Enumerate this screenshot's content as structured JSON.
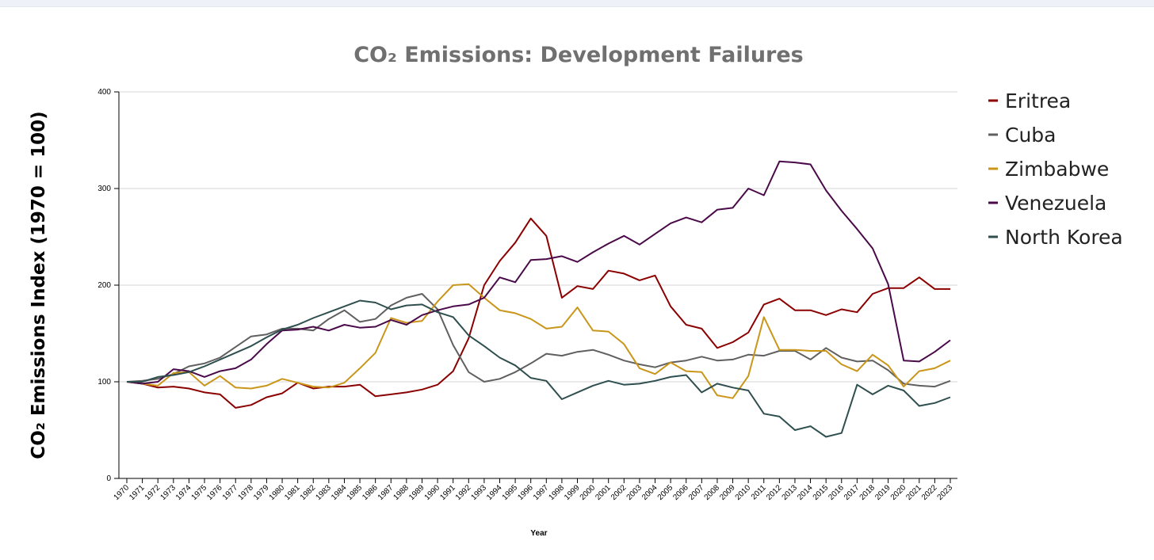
{
  "chart_data": {
    "type": "line",
    "title": "CO₂ Emissions: Development Failures",
    "xlabel": "Year",
    "ylabel": "CO₂ Emissions Index (1970 = 100)",
    "ylim": [
      0,
      400
    ],
    "yticks": [
      "0",
      "100",
      "200",
      "300",
      "400"
    ],
    "grid": true,
    "legend_position": "right",
    "x": [
      1970,
      1971,
      1972,
      1973,
      1974,
      1975,
      1976,
      1977,
      1978,
      1979,
      1980,
      1981,
      1982,
      1983,
      1984,
      1985,
      1986,
      1987,
      1988,
      1989,
      1990,
      1991,
      1992,
      1993,
      1994,
      1995,
      1996,
      1997,
      1998,
      1999,
      2000,
      2001,
      2002,
      2003,
      2004,
      2005,
      2006,
      2007,
      2008,
      2009,
      2010,
      2011,
      2012,
      2013,
      2014,
      2015,
      2016,
      2017,
      2018,
      2019,
      2020,
      2021,
      2022,
      2023
    ],
    "series": [
      {
        "name": "Eritrea",
        "color": "#8b0000",
        "values": [
          100,
          98,
          94,
          95,
          93,
          89,
          87,
          73,
          76,
          84,
          88,
          99,
          93,
          95,
          95,
          97,
          85,
          87,
          89,
          92,
          97,
          111,
          145,
          200,
          225,
          244,
          269,
          251,
          187,
          199,
          196,
          215,
          212,
          205,
          210,
          178,
          159,
          155,
          135,
          141,
          151,
          180,
          186,
          174,
          174,
          169,
          175,
          172,
          191,
          197,
          197,
          208,
          196,
          196
        ]
      },
      {
        "name": "Cuba",
        "color": "#606060",
        "values": [
          100,
          101,
          103,
          108,
          116,
          119,
          125,
          136,
          147,
          149,
          155,
          155,
          153,
          165,
          174,
          162,
          165,
          179,
          187,
          191,
          175,
          138,
          110,
          100,
          103,
          110,
          119,
          129,
          127,
          131,
          133,
          128,
          122,
          118,
          115,
          120,
          122,
          126,
          122,
          123,
          128,
          127,
          132,
          132,
          123,
          135,
          125,
          121,
          122,
          112,
          98,
          96,
          95,
          101
        ]
      },
      {
        "name": "Zimbabwe",
        "color": "#c9961a",
        "values": [
          100,
          98,
          96,
          109,
          110,
          96,
          106,
          94,
          93,
          96,
          103,
          99,
          95,
          94,
          99,
          114,
          130,
          166,
          161,
          163,
          183,
          200,
          201,
          187,
          174,
          171,
          165,
          155,
          157,
          177,
          153,
          152,
          139,
          114,
          108,
          120,
          111,
          110,
          86,
          83,
          106,
          167,
          133,
          133,
          132,
          132,
          118,
          111,
          128,
          117,
          95,
          111,
          114,
          122
        ]
      },
      {
        "name": "Venezuela",
        "color": "#4a0a4a",
        "values": [
          100,
          98,
          100,
          113,
          111,
          105,
          111,
          114,
          123,
          139,
          153,
          154,
          157,
          153,
          159,
          156,
          157,
          164,
          159,
          169,
          174,
          178,
          180,
          187,
          208,
          203,
          226,
          227,
          230,
          224,
          234,
          243,
          251,
          242,
          253,
          264,
          270,
          265,
          278,
          280,
          300,
          293,
          328,
          327,
          325,
          298,
          277,
          258,
          238,
          201,
          122,
          121,
          131,
          143
        ]
      },
      {
        "name": "North Korea",
        "color": "#2f4f4f",
        "values": [
          100,
          100,
          105,
          107,
          110,
          116,
          123,
          130,
          137,
          146,
          154,
          159,
          166,
          172,
          178,
          184,
          182,
          175,
          179,
          180,
          172,
          167,
          148,
          137,
          125,
          117,
          104,
          101,
          82,
          89,
          96,
          101,
          97,
          98,
          101,
          105,
          107,
          89,
          98,
          94,
          91,
          67,
          64,
          50,
          54,
          43,
          47,
          97,
          87,
          96,
          91,
          75,
          78,
          84
        ]
      }
    ]
  }
}
